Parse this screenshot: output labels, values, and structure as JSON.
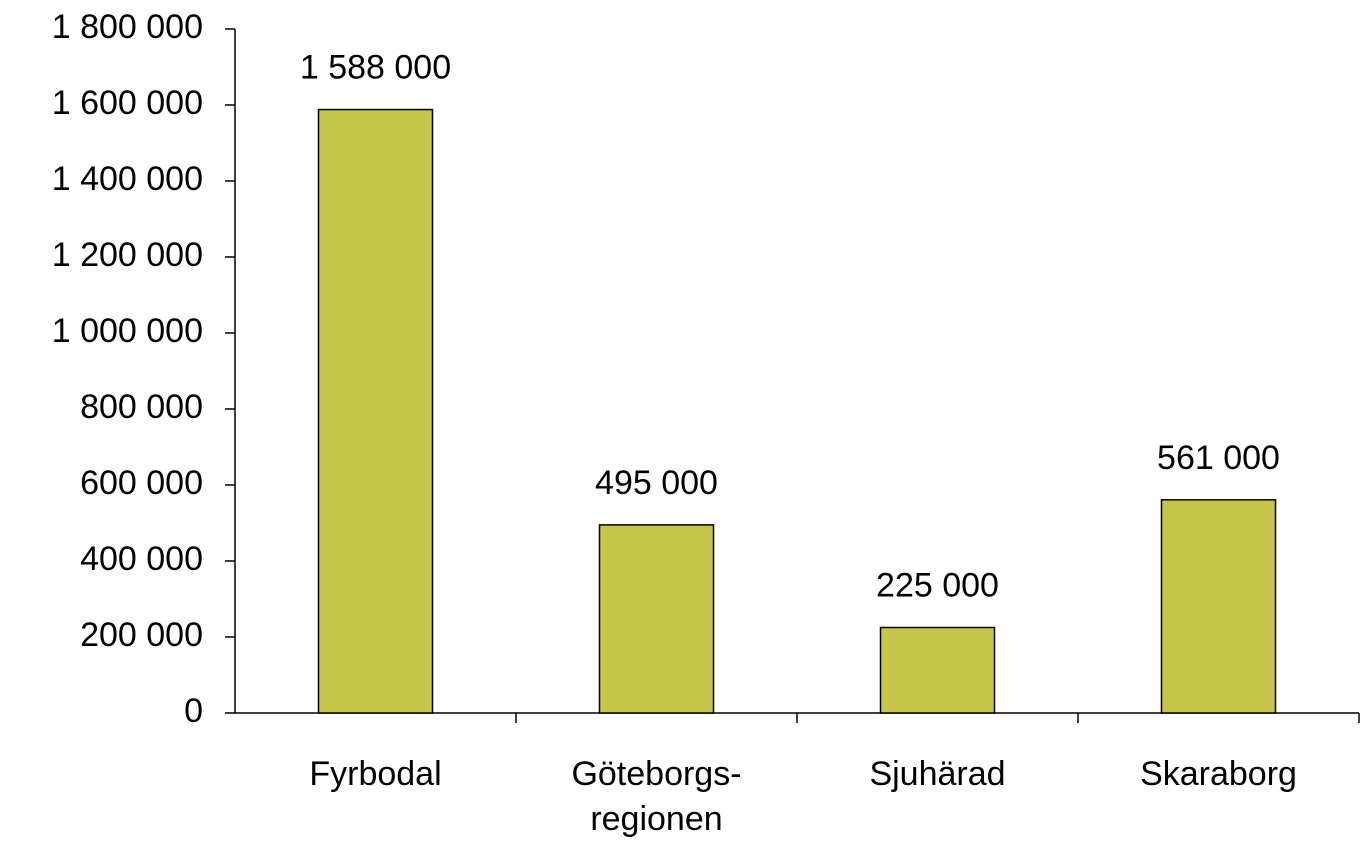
{
  "chart_data": {
    "type": "bar",
    "categories": [
      "Fyrbodal",
      "Göteborgs-regionen",
      "Sjuhärad",
      "Skaraborg"
    ],
    "values": [
      1588000,
      495000,
      225000,
      561000
    ],
    "value_labels": [
      "1 588 000",
      "495 000",
      "225 000",
      "561 000"
    ],
    "color": "#c5c64b",
    "ylim": [
      0,
      1800000
    ],
    "yticks": [
      0,
      {
        "value": 200000,
        "label": "200 000"
      },
      {
        "value": 400000,
        "label": "400 000"
      },
      {
        "value": 600000,
        "label": "600 000"
      },
      {
        "value": 800000,
        "label": "800 000"
      },
      {
        "value": 1000000,
        "label": "1 000 000"
      },
      {
        "value": 1200000,
        "label": "1 200 000"
      },
      {
        "value": 1400000,
        "label": "1 400 000"
      },
      {
        "value": 1600000,
        "label": "1 600 000"
      },
      {
        "value": 1800000,
        "label": "1 800 000"
      }
    ],
    "grid": false
  }
}
